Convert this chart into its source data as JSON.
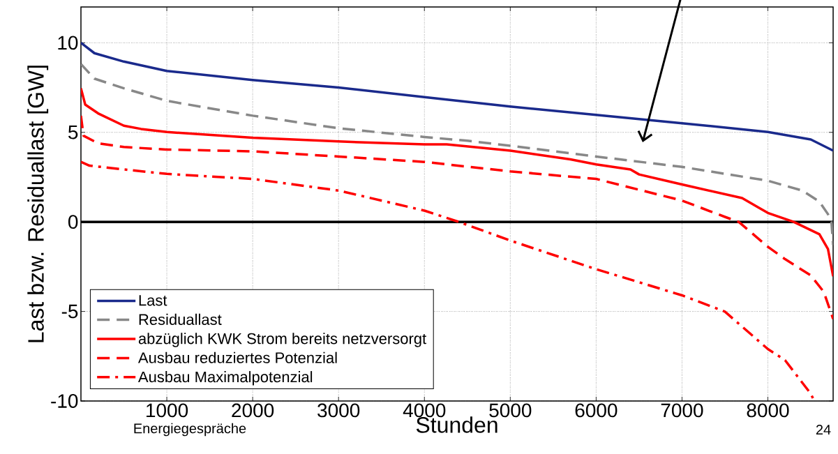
{
  "chart_data": {
    "type": "line",
    "xlabel": "Stunden",
    "ylabel": "Last bzw. Residuallast [GW]",
    "xlim": [
      0,
      8760
    ],
    "ylim": [
      -10,
      12
    ],
    "xticks": [
      1000,
      2000,
      3000,
      4000,
      5000,
      6000,
      7000,
      8000
    ],
    "yticks": [
      -10,
      -5,
      0,
      5,
      10
    ],
    "grid": true,
    "legend": "bottom left",
    "ref_lines": [
      {
        "axis": "y",
        "value": 0,
        "color": "#000000"
      }
    ],
    "annotations": [
      "Energiegespräche",
      "24"
    ],
    "series": [
      {
        "name": "Last",
        "color": "#1a2a8c",
        "line_style": "solid",
        "x": [
          0,
          157,
          500,
          1000,
          2000,
          3000,
          4000,
          5000,
          6000,
          7000,
          8000,
          8500,
          8760
        ],
        "values": [
          10,
          9.42,
          8.95,
          8.43,
          7.92,
          7.5,
          6.97,
          6.44,
          5.97,
          5.51,
          5.02,
          4.6,
          3.98
        ]
      },
      {
        "name": "Residuallast",
        "color": "#888888",
        "line_style": "dashed",
        "x": [
          0,
          157,
          500,
          1000,
          2000,
          3000,
          4000,
          4500,
          5000,
          6000,
          7000,
          8000,
          8400,
          8600,
          8700,
          8740,
          8760
        ],
        "values": [
          8.81,
          8.0,
          7.46,
          6.76,
          5.93,
          5.23,
          4.74,
          4.53,
          4.25,
          3.65,
          3.07,
          2.3,
          1.75,
          1.13,
          0.43,
          0,
          -1.3
        ]
      },
      {
        "name": "abzüglich KWK Strom bereits netzversorgt",
        "color": "#ff0000",
        "line_style": "solid",
        "x": [
          0,
          50,
          200,
          500,
          700,
          1000,
          2000,
          3000,
          4000,
          4260,
          5000,
          5700,
          6000,
          6400,
          6500,
          7000,
          7700,
          7900,
          8000,
          8300,
          8600,
          8700,
          8760
        ],
        "values": [
          7.46,
          6.55,
          6.06,
          5.37,
          5.19,
          5.02,
          4.7,
          4.49,
          4.33,
          4.33,
          3.98,
          3.49,
          3.21,
          2.93,
          2.65,
          2.09,
          1.33,
          0.78,
          0.5,
          0,
          -0.69,
          -1.52,
          -3.04
        ]
      },
      {
        "name": "Ausbau reduziertes Potenzial",
        "color": "#ff0000",
        "line_style": "dashed",
        "x": [
          0,
          30,
          200,
          500,
          1000,
          2000,
          3000,
          4000,
          5000,
          6000,
          7000,
          7500,
          7660,
          8000,
          8200,
          8500,
          8650,
          8760
        ],
        "values": [
          5.93,
          4.81,
          4.39,
          4.18,
          4.04,
          3.94,
          3.65,
          3.35,
          2.82,
          2.4,
          1.19,
          0.28,
          0,
          -1.39,
          -2.08,
          -2.99,
          -3.9,
          -5.42
        ]
      },
      {
        "name": "Ausbau Maximalpotenzial",
        "color": "#ff0000",
        "line_style": "dashdot",
        "x": [
          0,
          100,
          500,
          1000,
          2000,
          3000,
          4000,
          4400,
          5000,
          6000,
          7000,
          7500,
          8000,
          8200,
          8500,
          8540
        ],
        "values": [
          3.35,
          3.14,
          2.93,
          2.68,
          2.4,
          1.75,
          0.63,
          0,
          -1.04,
          -2.64,
          -4.1,
          -5.01,
          -7.1,
          -7.72,
          -9.6,
          -10
        ]
      }
    ]
  }
}
